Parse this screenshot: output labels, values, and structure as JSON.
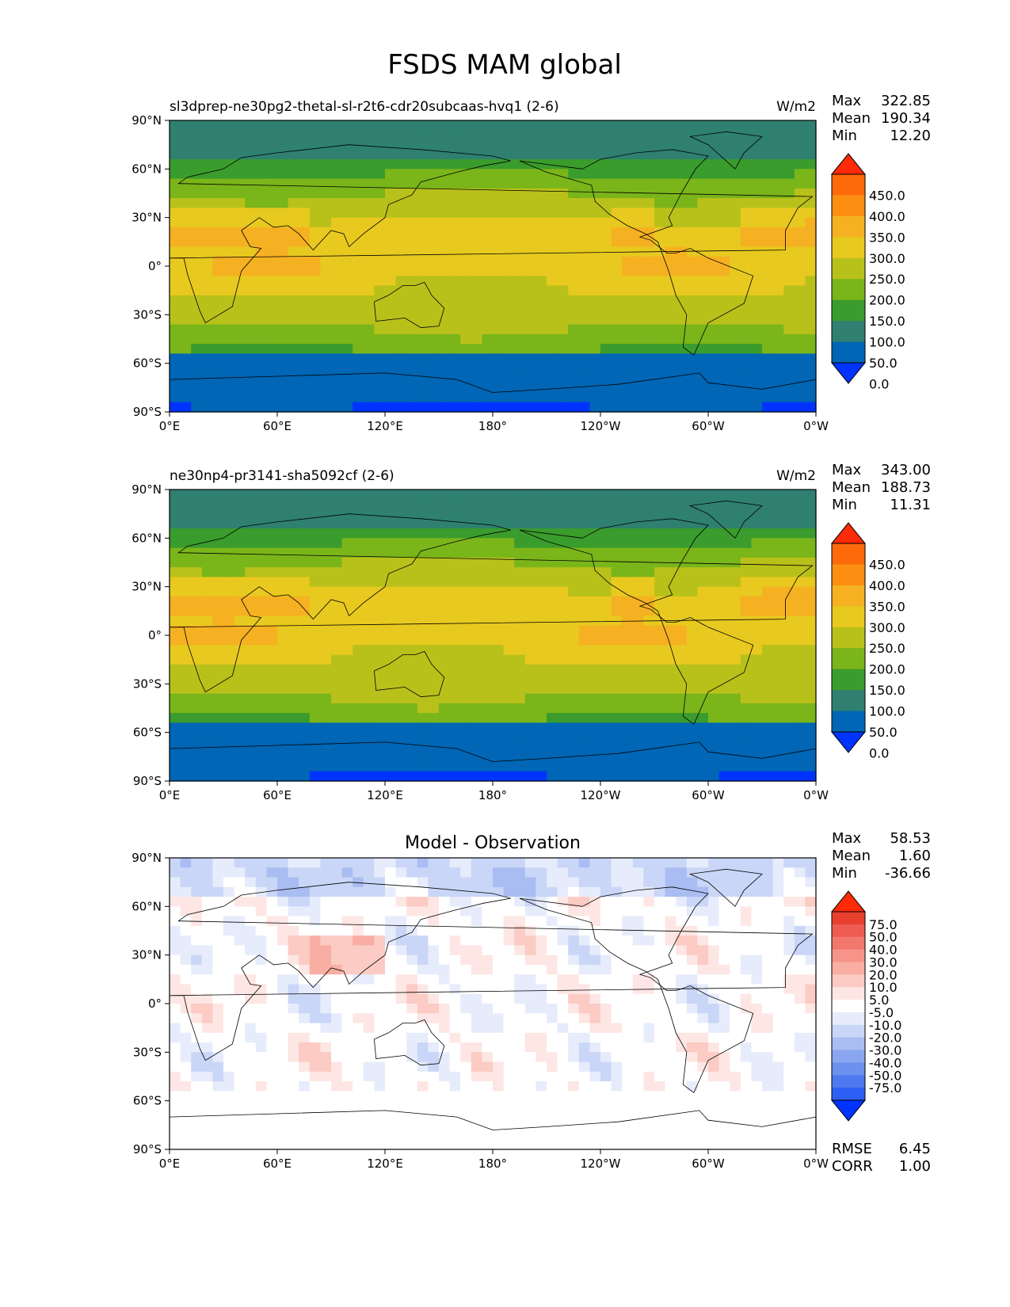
{
  "figure": {
    "title": "FSDS MAM global"
  },
  "colors": {
    "abs_levels": [
      "#0033ff",
      "#0066b5",
      "#2f8071",
      "#3a9c2c",
      "#7ab51a",
      "#b8c11a",
      "#e8c91f",
      "#f5b122",
      "#fc8e11",
      "#fd6a0c",
      "#ff2a08"
    ],
    "diff_levels": [
      "#0033ff",
      "#2e5ff5",
      "#4d79ee",
      "#6d91ee",
      "#8ba6f0",
      "#aabdf2",
      "#cad6f7",
      "#e6ecfb",
      "#ffffff",
      "#fde6e3",
      "#fbcbc4",
      "#f9aea4",
      "#f6948a",
      "#f2786d",
      "#ee5b51",
      "#e8402f",
      "#ff2a08"
    ],
    "land": "#000000"
  },
  "chart_data": [
    {
      "type": "heatmap",
      "panel": "test",
      "title": "sl3dprep-ne30pg2-thetal-sl-r2t6-cdr20subcaas-hvq1 (2-6)",
      "units": "W/m2",
      "stats": [
        {
          "label": "Max",
          "value": "322.85"
        },
        {
          "label": "Mean",
          "value": "190.34"
        },
        {
          "label": "Min",
          "value": "12.20"
        }
      ],
      "x_ticks": [
        "0°E",
        "60°E",
        "120°E",
        "180°",
        "120°W",
        "60°W",
        "0°W"
      ],
      "y_ticks": [
        "90°N",
        "60°N",
        "30°N",
        "0°",
        "30°S",
        "60°S",
        "90°S"
      ],
      "colorbar_labels": [
        "450.0",
        "400.0",
        "350.0",
        "300.0",
        "250.0",
        "200.0",
        "150.0",
        "100.0",
        "50.0",
        "0.0"
      ],
      "colormap": "abs",
      "levels": [
        0,
        50,
        100,
        150,
        200,
        250,
        300,
        350,
        400,
        450
      ],
      "max": 322.85,
      "mean": 190.34,
      "min": 12.2
    },
    {
      "type": "heatmap",
      "panel": "reference",
      "title": "ne30np4-pr3141-sha5092cf (2-6)",
      "units": "W/m2",
      "stats": [
        {
          "label": "Max",
          "value": "343.00"
        },
        {
          "label": "Mean",
          "value": "188.73"
        },
        {
          "label": "Min",
          "value": "11.31"
        }
      ],
      "x_ticks": [
        "0°E",
        "60°E",
        "120°E",
        "180°",
        "120°W",
        "60°W",
        "0°W"
      ],
      "y_ticks": [
        "90°N",
        "60°N",
        "30°N",
        "0°",
        "30°S",
        "60°S",
        "90°S"
      ],
      "colorbar_labels": [
        "450.0",
        "400.0",
        "350.0",
        "300.0",
        "250.0",
        "200.0",
        "150.0",
        "100.0",
        "50.0",
        "0.0"
      ],
      "colormap": "abs",
      "levels": [
        0,
        50,
        100,
        150,
        200,
        250,
        300,
        350,
        400,
        450
      ],
      "max": 343.0,
      "mean": 188.73,
      "min": 11.31
    },
    {
      "type": "heatmap",
      "panel": "difference",
      "title": "Model - Observation",
      "units": "",
      "stats": [
        {
          "label": "Max",
          "value": "58.53"
        },
        {
          "label": "Mean",
          "value": "1.60"
        },
        {
          "label": "Min",
          "value": "-36.66"
        }
      ],
      "bottom_stats": [
        {
          "label": "RMSE",
          "value": "6.45"
        },
        {
          "label": "CORR",
          "value": "1.00"
        }
      ],
      "x_ticks": [
        "0°E",
        "60°E",
        "120°E",
        "180°",
        "120°W",
        "60°W",
        "0°W"
      ],
      "y_ticks": [
        "90°N",
        "60°N",
        "30°N",
        "0°",
        "30°S",
        "60°S",
        "90°S"
      ],
      "colorbar_labels": [
        "75.0",
        "50.0",
        "40.0",
        "30.0",
        "20.0",
        "10.0",
        "5.0",
        "-5.0",
        "-10.0",
        "-20.0",
        "-30.0",
        "-40.0",
        "-50.0",
        "-75.0"
      ],
      "colormap": "diff",
      "levels": [
        -75,
        -50,
        -40,
        -30,
        -20,
        -10,
        -5,
        5,
        10,
        20,
        30,
        40,
        50,
        75
      ],
      "max": 58.53,
      "mean": 1.6,
      "min": -36.66,
      "rmse": 6.45,
      "corr": 1.0
    }
  ]
}
